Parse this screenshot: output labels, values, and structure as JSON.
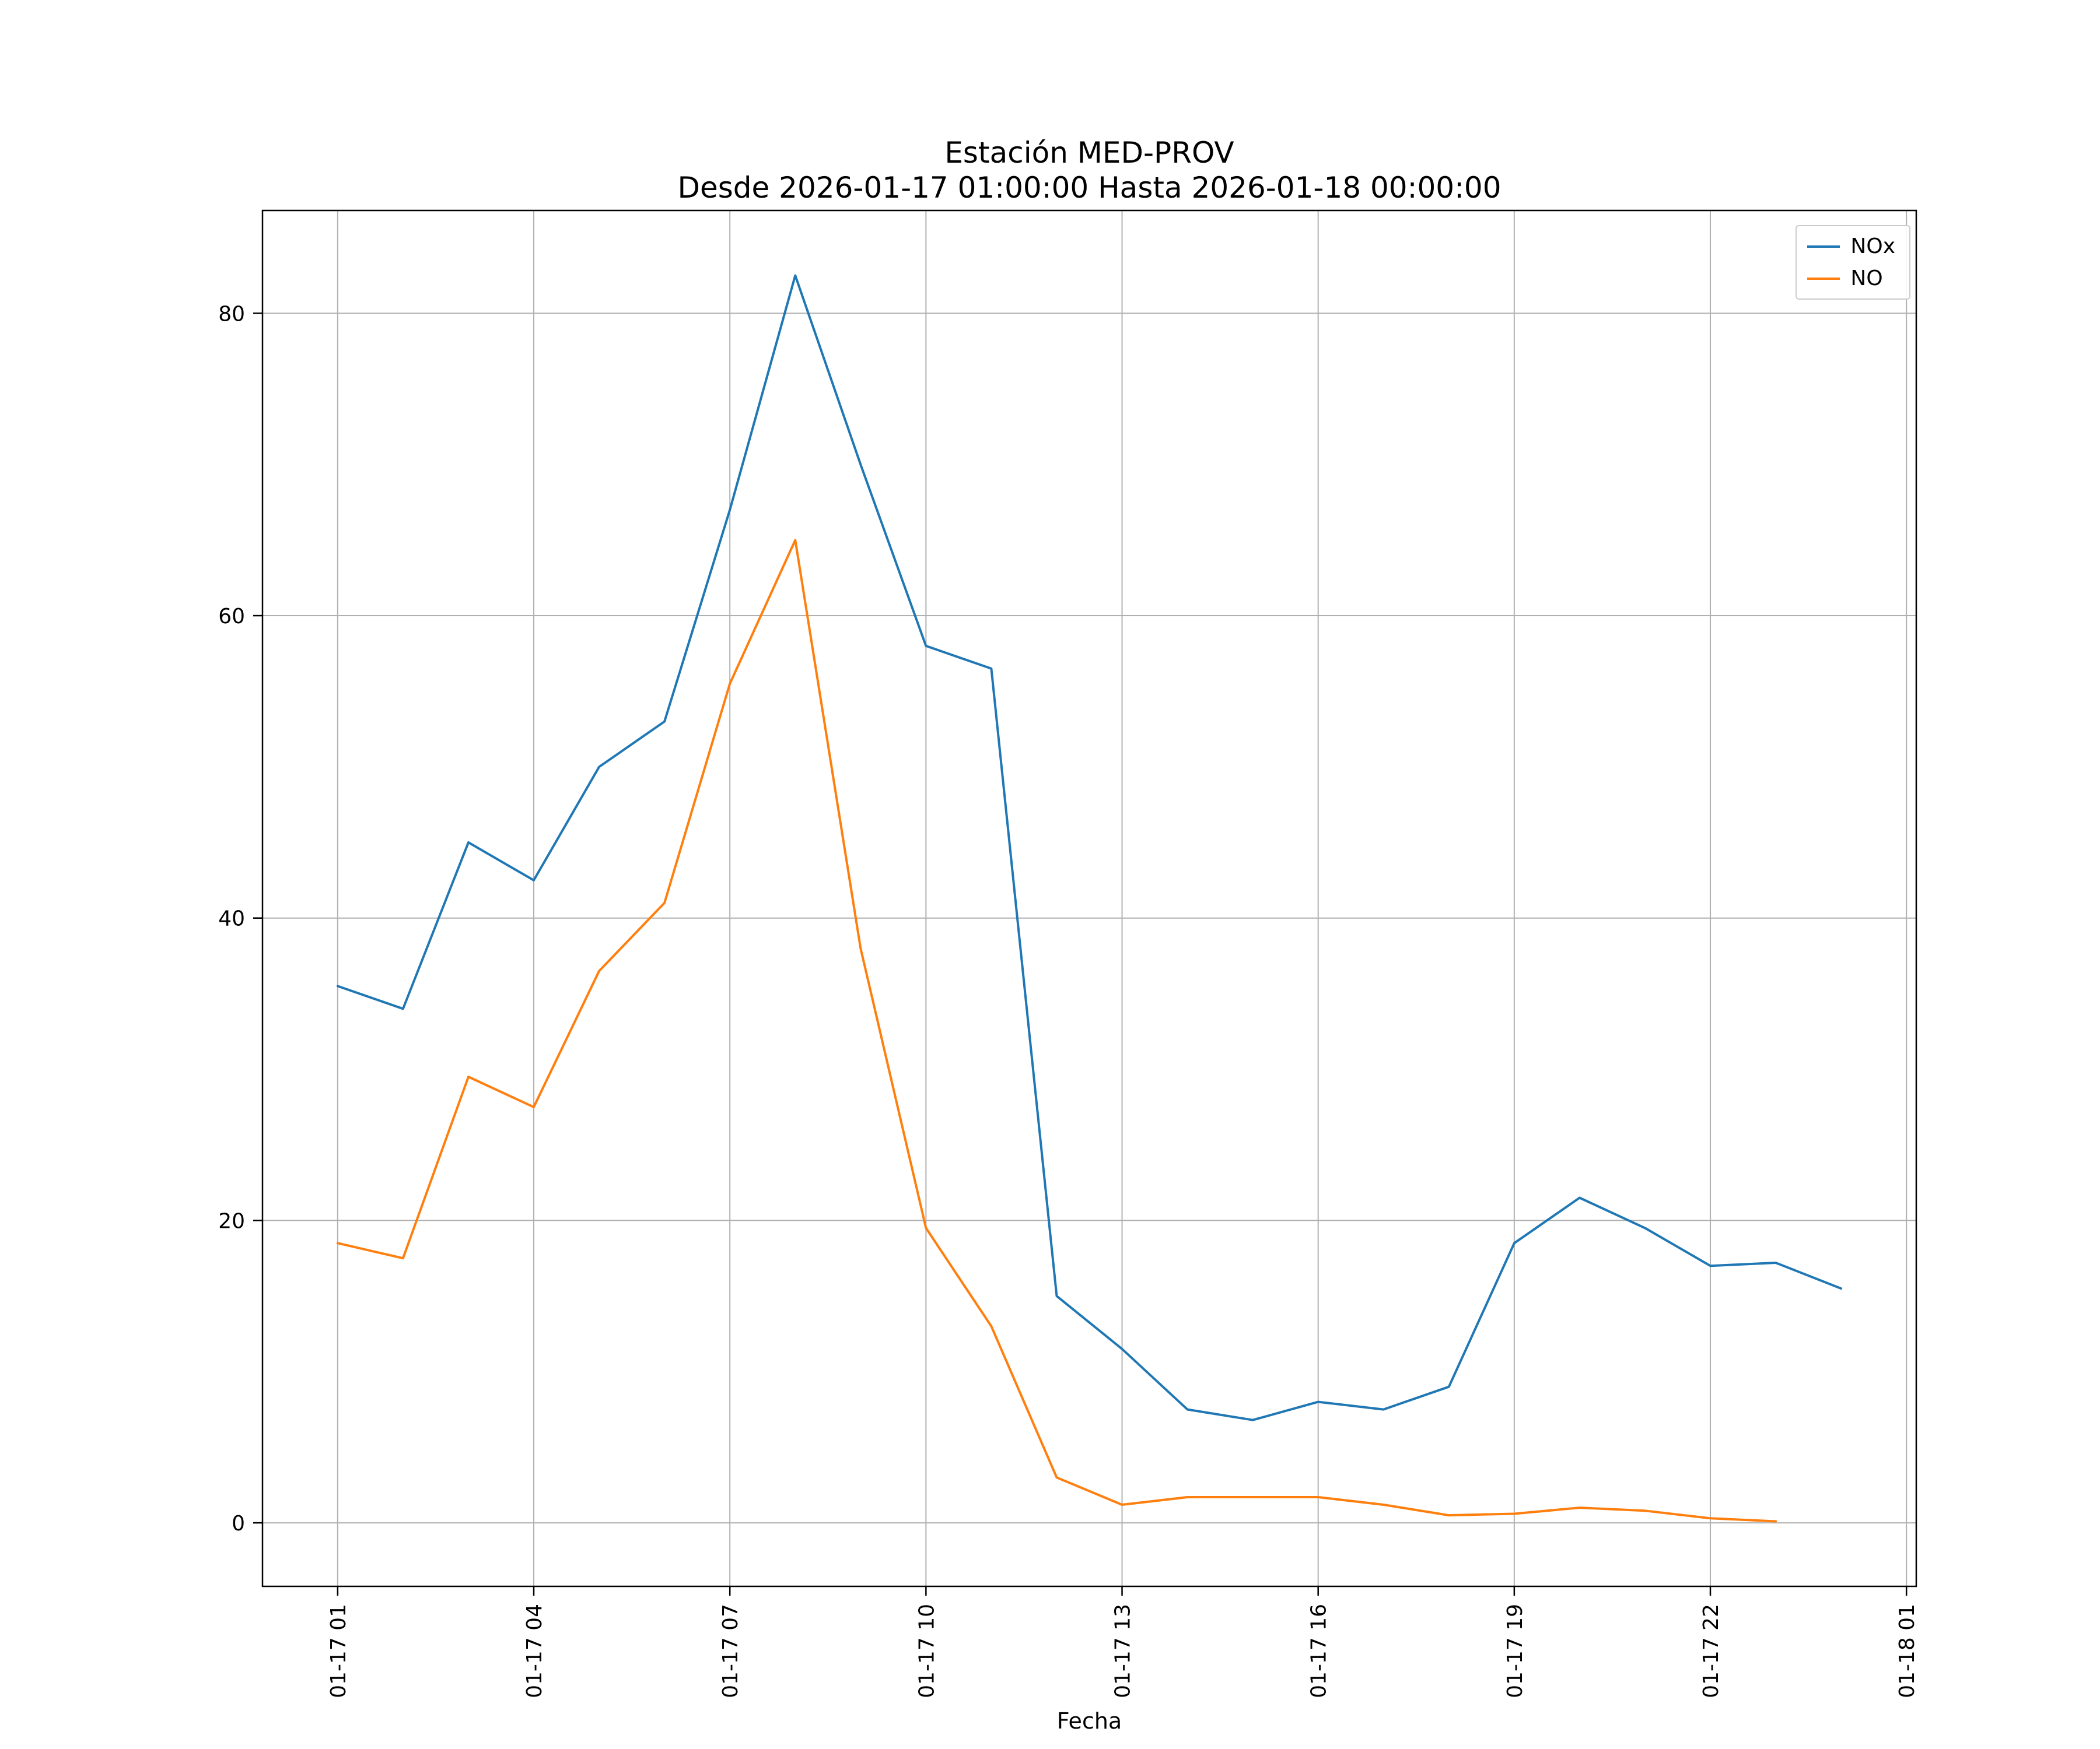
{
  "chart_data": {
    "type": "line",
    "title": "Estación MED-PROV",
    "subtitle": "Desde 2026-01-17 01:00:00 Hasta 2026-01-18 00:00:00",
    "xlabel": "Fecha",
    "ylabel": "",
    "grid": true,
    "legend_position": "upper right",
    "xlim_hours": [
      -0.15,
      25.15
    ],
    "ylim": [
      -4.2,
      86.8
    ],
    "yticks": [
      0,
      20,
      40,
      60,
      80
    ],
    "xticks": [
      {
        "hour": 1,
        "label": "01-17 01"
      },
      {
        "hour": 4,
        "label": "01-17 04"
      },
      {
        "hour": 7,
        "label": "01-17 07"
      },
      {
        "hour": 10,
        "label": "01-17 10"
      },
      {
        "hour": 13,
        "label": "01-17 13"
      },
      {
        "hour": 16,
        "label": "01-17 16"
      },
      {
        "hour": 19,
        "label": "01-17 19"
      },
      {
        "hour": 22,
        "label": "01-17 22"
      },
      {
        "hour": 25,
        "label": "01-18 01"
      }
    ],
    "series": [
      {
        "name": "NOx",
        "color": "#1f77b4",
        "x": [
          1,
          2,
          3,
          4,
          5,
          6,
          7,
          8,
          9,
          10,
          11,
          12,
          13,
          14,
          15,
          16,
          17,
          18,
          19,
          20,
          21,
          22,
          23,
          24
        ],
        "values": [
          35.5,
          34,
          45,
          42.5,
          50,
          53,
          67,
          82.5,
          70,
          58,
          56.5,
          15,
          11.5,
          7.5,
          6.8,
          8,
          7.5,
          9,
          18.5,
          21.5,
          19.5,
          17,
          17.2,
          15.5
        ]
      },
      {
        "name": "NO",
        "color": "#ff7f0e",
        "x": [
          1,
          2,
          3,
          4,
          5,
          6,
          7,
          8,
          9,
          10,
          11,
          12,
          13,
          14,
          15,
          16,
          17,
          18,
          19,
          20,
          21,
          22,
          23
        ],
        "values": [
          18.5,
          17.5,
          29.5,
          27.5,
          36.5,
          41,
          55.5,
          65,
          38,
          19.5,
          13,
          3,
          1.2,
          1.7,
          1.7,
          1.7,
          1.2,
          0.5,
          0.6,
          1,
          0.8,
          0.3,
          0.1
        ]
      }
    ]
  },
  "layout_text": {
    "title_line1": "Estación MED-PROV",
    "title_line2": "Desde 2026-01-17 01:00:00 Hasta 2026-01-18 00:00:00",
    "xlabel": "Fecha"
  }
}
